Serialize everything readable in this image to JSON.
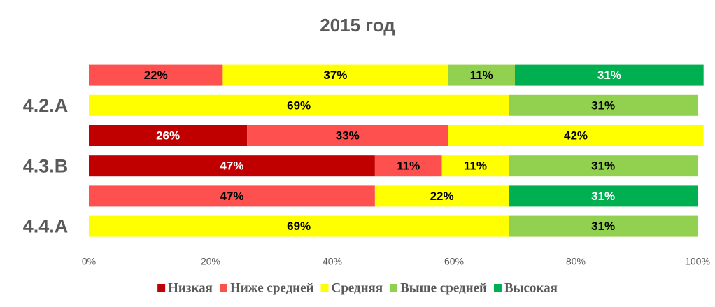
{
  "chart_data": {
    "type": "stacked-barh",
    "title": "2015 год",
    "categories": [
      null,
      "4.2.A",
      null,
      "4.3.B",
      null,
      "4.4.A"
    ],
    "series": [
      {
        "name": "Низкая",
        "color": "#c00000",
        "label_color": "#ffffff",
        "values": [
          null,
          null,
          26,
          47,
          null,
          null
        ],
        "value_labels": [
          null,
          null,
          "26%",
          "47%",
          null,
          null
        ]
      },
      {
        "name": "Ниже средней",
        "color": "#ff5050",
        "label_color": "#000000",
        "values": [
          22,
          null,
          33,
          11,
          47,
          null
        ],
        "value_labels": [
          "22%",
          null,
          "33%",
          "11%",
          "47%",
          null
        ]
      },
      {
        "name": "Средняя",
        "color": "#ffff00",
        "label_color": "#000000",
        "values": [
          37,
          69,
          42,
          11,
          22,
          69
        ],
        "value_labels": [
          "37%",
          "69%",
          "42%",
          "11%",
          "22%",
          "69%"
        ]
      },
      {
        "name": "Выше средней",
        "color": "#92d050",
        "label_color": "#000000",
        "values": [
          11,
          31,
          null,
          31,
          null,
          31
        ],
        "value_labels": [
          "11%",
          "31%",
          null,
          "31%",
          null,
          "31%"
        ]
      },
      {
        "name": "Высокая",
        "color": "#00b050",
        "label_color": "#ffffff",
        "values": [
          31,
          null,
          null,
          null,
          31,
          null
        ],
        "value_labels": [
          "31%",
          null,
          null,
          null,
          "31%",
          null
        ]
      }
    ],
    "xlim": [
      0,
      100
    ],
    "xticks": [
      {
        "value": 0,
        "label": "0%"
      },
      {
        "value": 20,
        "label": "20%"
      },
      {
        "value": 40,
        "label": "40%"
      },
      {
        "value": 60,
        "label": "60%"
      },
      {
        "value": 80,
        "label": "80%"
      },
      {
        "value": 100,
        "label": "100%"
      }
    ],
    "grid": false,
    "legend": "bottom"
  }
}
